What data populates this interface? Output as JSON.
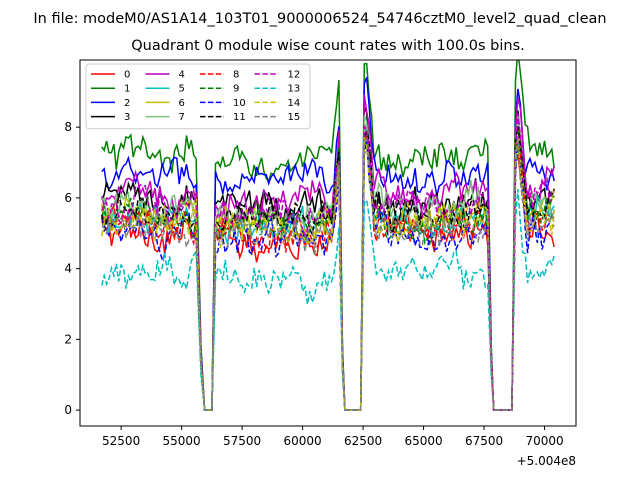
{
  "chart_data": {
    "type": "line",
    "suptitle": "In file: modeM0/AS1A14_103T01_9000006524_54746cztM0_level2_quad_clean",
    "title": "Quadrant 0 module wise count rates with 100.0s bins.",
    "xlabel": "",
    "ylabel": "",
    "x_offset_label": "+5.004e8",
    "x_offset": 500400000,
    "xlim": [
      50800,
      71300
    ],
    "ylim": [
      -0.45,
      9.9
    ],
    "x_ticks": [
      52500,
      55000,
      57500,
      60000,
      62500,
      65000,
      67500,
      70000
    ],
    "x_tick_labels": [
      "52500",
      "55000",
      "57500",
      "60000",
      "62500",
      "65000",
      "67500",
      "70000"
    ],
    "y_ticks": [
      0,
      2,
      4,
      6,
      8
    ],
    "y_tick_labels": [
      "0",
      "2",
      "4",
      "6",
      "8"
    ],
    "legend_location": "upper left",
    "legend_columns": 4,
    "series": [
      {
        "name": "0",
        "color": "#ff0000",
        "style": "solid",
        "base": 5.0
      },
      {
        "name": "1",
        "color": "#008000",
        "style": "solid",
        "base": 7.2
      },
      {
        "name": "2",
        "color": "#0000ff",
        "style": "solid",
        "base": 6.6
      },
      {
        "name": "3",
        "color": "#000000",
        "style": "solid",
        "base": 5.9
      },
      {
        "name": "4",
        "color": "#bf00bf",
        "style": "solid",
        "base": 6.1
      },
      {
        "name": "5",
        "color": "#00bfbf",
        "style": "solid",
        "base": 5.3
      },
      {
        "name": "6",
        "color": "#bfbf00",
        "style": "solid",
        "base": 5.5
      },
      {
        "name": "7",
        "color": "#7fbf7f",
        "style": "solid",
        "base": 5.7
      },
      {
        "name": "8",
        "color": "#ff0000",
        "style": "dashed",
        "base": 5.2
      },
      {
        "name": "9",
        "color": "#008000",
        "style": "dashed",
        "base": 5.4
      },
      {
        "name": "10",
        "color": "#0000ff",
        "style": "dashed",
        "base": 4.9
      },
      {
        "name": "11",
        "color": "#000000",
        "style": "dashed",
        "base": 5.6
      },
      {
        "name": "12",
        "color": "#bf00bf",
        "style": "dashed",
        "base": 5.8
      },
      {
        "name": "13",
        "color": "#00bfbf",
        "style": "dashed",
        "base": 3.8
      },
      {
        "name": "14",
        "color": "#bfbf00",
        "style": "dashed",
        "base": 5.3
      },
      {
        "name": "15",
        "color": "#808080",
        "style": "dashed",
        "base": 5.1
      }
    ],
    "segments": [
      {
        "x_start": 51700,
        "x_end": 55650,
        "factor": 1.0
      },
      {
        "x_start": 56400,
        "x_end": 61550,
        "factor": 0.97
      },
      {
        "x_start": 62550,
        "x_end": 67700,
        "factor": 1.0
      },
      {
        "x_start": 68800,
        "x_end": 70450,
        "factor": 1.03
      }
    ],
    "gaps": [
      {
        "x_start": 55950,
        "x_end": 56250
      },
      {
        "x_start": 61750,
        "x_end": 62400
      },
      {
        "x_start": 67900,
        "x_end": 68650
      }
    ],
    "spikes": [
      {
        "x": 61600,
        "boost": 2.8
      },
      {
        "x": 62600,
        "boost": 3.2
      },
      {
        "x": 68900,
        "boost": 2.6
      }
    ]
  }
}
